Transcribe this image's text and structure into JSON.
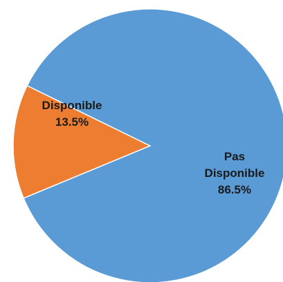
{
  "chart_data": {
    "type": "pie",
    "title": "",
    "start_angle_deg": 157.5,
    "direction": "clockwise",
    "slices": [
      {
        "key": "disponible",
        "label_lines": [
          "Disponible"
        ],
        "value": 13.5,
        "value_label": "13.5%",
        "color": "#ED7D31"
      },
      {
        "key": "pas-disponible",
        "label_lines": [
          "Pas",
          "Disponible"
        ],
        "value": 86.5,
        "value_label": "86.5%",
        "color": "#5B9BD5"
      }
    ],
    "legend": "none"
  }
}
